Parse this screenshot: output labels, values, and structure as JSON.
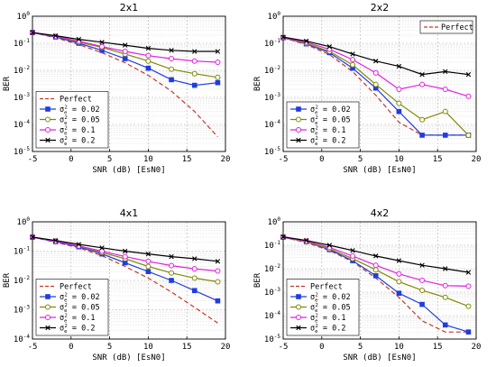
{
  "colors": {
    "Perfect": "#c0392b",
    "s002": "#1f3de0",
    "s005": "#808a00",
    "s01": "#e020e0",
    "s02": "#000000"
  },
  "chart_data": [
    {
      "type": "line",
      "title": "2x1",
      "xlabel": "SNR (dB) [EsN0]",
      "ylabel": "BER",
      "yscale": "log",
      "xlim": [
        -5,
        20
      ],
      "ylim": [
        1e-05,
        1
      ],
      "xticks": [
        -5,
        0,
        5,
        10,
        15,
        20
      ],
      "yexp": [
        -5,
        -4,
        -3,
        -2,
        -1,
        0
      ],
      "grid": true,
      "legend": "bottom-left",
      "series": [
        {
          "name": "Perfect",
          "key": "Perfect",
          "style": "dash",
          "x": [
            -5,
            -2,
            1,
            4,
            7,
            10,
            13,
            16,
            19
          ],
          "y": [
            0.25,
            0.16,
            0.09,
            0.045,
            0.019,
            0.0065,
            0.0017,
            0.0003,
            3.5e-05
          ]
        },
        {
          "name": "σe² = 0.02",
          "key": "s002",
          "marker": "square",
          "x": [
            -5,
            -2,
            1,
            4,
            7,
            10,
            13,
            16,
            19
          ],
          "y": [
            0.25,
            0.17,
            0.1,
            0.055,
            0.027,
            0.012,
            0.0045,
            0.0028,
            0.0035
          ]
        },
        {
          "name": "σe² = 0.05",
          "key": "s005",
          "marker": "circle",
          "x": [
            -5,
            -2,
            1,
            4,
            7,
            10,
            13,
            16,
            19
          ],
          "y": [
            0.25,
            0.18,
            0.11,
            0.07,
            0.04,
            0.022,
            0.011,
            0.0075,
            0.0055
          ]
        },
        {
          "name": "σe² = 0.1",
          "key": "s01",
          "marker": "circle",
          "x": [
            -5,
            -2,
            1,
            4,
            7,
            10,
            13,
            16,
            19
          ],
          "y": [
            0.25,
            0.18,
            0.12,
            0.075,
            0.05,
            0.035,
            0.027,
            0.022,
            0.02
          ]
        },
        {
          "name": "σe² = 0.2",
          "key": "s02",
          "marker": "x",
          "x": [
            -5,
            -2,
            1,
            4,
            7,
            10,
            13,
            16,
            19
          ],
          "y": [
            0.25,
            0.19,
            0.14,
            0.11,
            0.085,
            0.065,
            0.055,
            0.05,
            0.05
          ]
        }
      ]
    },
    {
      "type": "line",
      "title": "2x2",
      "xlabel": "SNR (dB) [EsN0]",
      "ylabel": "BER",
      "yscale": "log",
      "xlim": [
        -5,
        20
      ],
      "ylim": [
        1e-05,
        1
      ],
      "xticks": [
        -5,
        0,
        5,
        10,
        15,
        20
      ],
      "yexp": [
        -5,
        -4,
        -3,
        -2,
        -1,
        0
      ],
      "grid": true,
      "legend": "bottom-left",
      "legend_perfect": "top-right",
      "series": [
        {
          "name": "Perfect",
          "key": "Perfect",
          "style": "dash",
          "x": [
            -5,
            -2,
            1,
            4,
            7,
            10,
            13,
            16,
            19
          ],
          "y": [
            0.16,
            0.09,
            0.038,
            0.009,
            0.0012,
            0.00012,
            4e-05,
            4e-05,
            4e-05
          ]
        },
        {
          "name": "σe² = 0.02",
          "key": "s002",
          "marker": "square",
          "x": [
            -5,
            -2,
            1,
            4,
            7,
            10,
            13,
            16,
            19
          ],
          "y": [
            0.16,
            0.095,
            0.045,
            0.012,
            0.0022,
            0.0003,
            4e-05,
            4e-05,
            4e-05
          ]
        },
        {
          "name": "σe² = 0.05",
          "key": "s005",
          "marker": "circle",
          "x": [
            -5,
            -2,
            1,
            4,
            7,
            10,
            13,
            16,
            19
          ],
          "y": [
            0.16,
            0.1,
            0.05,
            0.016,
            0.003,
            0.0006,
            0.00015,
            0.0003,
            4e-05
          ]
        },
        {
          "name": "σe² = 0.1",
          "key": "s01",
          "marker": "circle",
          "x": [
            -5,
            -2,
            1,
            4,
            7,
            10,
            13,
            16,
            19
          ],
          "y": [
            0.16,
            0.11,
            0.06,
            0.025,
            0.008,
            0.002,
            0.003,
            0.002,
            0.0011
          ]
        },
        {
          "name": "σe² = 0.2",
          "key": "s02",
          "marker": "x",
          "x": [
            -5,
            -2,
            1,
            4,
            7,
            10,
            13,
            16,
            19
          ],
          "y": [
            0.17,
            0.12,
            0.075,
            0.04,
            0.022,
            0.014,
            0.007,
            0.009,
            0.007
          ]
        }
      ]
    },
    {
      "type": "line",
      "title": "4x1",
      "xlabel": "SNR (dB) [EsN0]",
      "ylabel": "BER",
      "yscale": "log",
      "xlim": [
        -5,
        20
      ],
      "ylim": [
        0.0001,
        1
      ],
      "xticks": [
        -5,
        0,
        5,
        10,
        15,
        20
      ],
      "yexp": [
        -4,
        -3,
        -2,
        -1,
        0
      ],
      "grid": true,
      "legend": "bottom-left",
      "series": [
        {
          "name": "Perfect",
          "key": "Perfect",
          "style": "dash",
          "x": [
            -5,
            -2,
            1,
            4,
            7,
            10,
            13,
            16,
            19
          ],
          "y": [
            0.3,
            0.2,
            0.13,
            0.07,
            0.03,
            0.012,
            0.004,
            0.0012,
            0.00035
          ]
        },
        {
          "name": "σe² = 0.02",
          "key": "s002",
          "marker": "square",
          "x": [
            -5,
            -2,
            1,
            4,
            7,
            10,
            13,
            16,
            19
          ],
          "y": [
            0.3,
            0.21,
            0.14,
            0.08,
            0.04,
            0.02,
            0.01,
            0.0045,
            0.002
          ]
        },
        {
          "name": "σe² = 0.05",
          "key": "s005",
          "marker": "circle",
          "x": [
            -5,
            -2,
            1,
            4,
            7,
            10,
            13,
            16,
            19
          ],
          "y": [
            0.3,
            0.22,
            0.15,
            0.09,
            0.055,
            0.03,
            0.018,
            0.012,
            0.009
          ]
        },
        {
          "name": "σe² = 0.1",
          "key": "s01",
          "marker": "circle",
          "x": [
            -5,
            -2,
            1,
            4,
            7,
            10,
            13,
            16,
            19
          ],
          "y": [
            0.3,
            0.22,
            0.15,
            0.1,
            0.065,
            0.045,
            0.032,
            0.025,
            0.021
          ]
        },
        {
          "name": "σe² = 0.2",
          "key": "s02",
          "marker": "x",
          "x": [
            -5,
            -2,
            1,
            4,
            7,
            10,
            13,
            16,
            19
          ],
          "y": [
            0.3,
            0.23,
            0.17,
            0.13,
            0.1,
            0.08,
            0.065,
            0.055,
            0.045
          ]
        }
      ]
    },
    {
      "type": "line",
      "title": "4x2",
      "xlabel": "SNR (dB) [EsN0]",
      "ylabel": "BER",
      "yscale": "log",
      "xlim": [
        -5,
        20
      ],
      "ylim": [
        1e-05,
        1
      ],
      "xticks": [
        -5,
        0,
        5,
        10,
        15,
        20
      ],
      "yexp": [
        -5,
        -4,
        -3,
        -2,
        -1,
        0
      ],
      "grid": true,
      "legend": "bottom-left",
      "series": [
        {
          "name": "Perfect",
          "key": "Perfect",
          "style": "dash",
          "x": [
            -5,
            -2,
            1,
            4,
            7,
            10,
            13,
            16,
            19
          ],
          "y": [
            0.22,
            0.13,
            0.06,
            0.02,
            0.004,
            0.0006,
            6e-05,
            2e-05,
            2e-05
          ]
        },
        {
          "name": "σe² = 0.02",
          "key": "s002",
          "marker": "square",
          "x": [
            -5,
            -2,
            1,
            4,
            7,
            10,
            13,
            16,
            19
          ],
          "y": [
            0.22,
            0.14,
            0.065,
            0.022,
            0.005,
            0.0009,
            0.0003,
            4e-05,
            2e-05
          ]
        },
        {
          "name": "σe² = 0.05",
          "key": "s005",
          "marker": "circle",
          "x": [
            -5,
            -2,
            1,
            4,
            7,
            10,
            13,
            16,
            19
          ],
          "y": [
            0.22,
            0.14,
            0.07,
            0.027,
            0.009,
            0.0028,
            0.0012,
            0.0006,
            0.00025
          ]
        },
        {
          "name": "σe² = 0.1",
          "key": "s01",
          "marker": "circle",
          "x": [
            -5,
            -2,
            1,
            4,
            7,
            10,
            13,
            16,
            19
          ],
          "y": [
            0.22,
            0.15,
            0.08,
            0.035,
            0.014,
            0.006,
            0.0032,
            0.0019,
            0.0018
          ]
        },
        {
          "name": "σe² = 0.2",
          "key": "s02",
          "marker": "x",
          "x": [
            -5,
            -2,
            1,
            4,
            7,
            10,
            13,
            16,
            19
          ],
          "y": [
            0.23,
            0.16,
            0.1,
            0.06,
            0.035,
            0.022,
            0.014,
            0.01,
            0.007
          ]
        }
      ]
    }
  ]
}
